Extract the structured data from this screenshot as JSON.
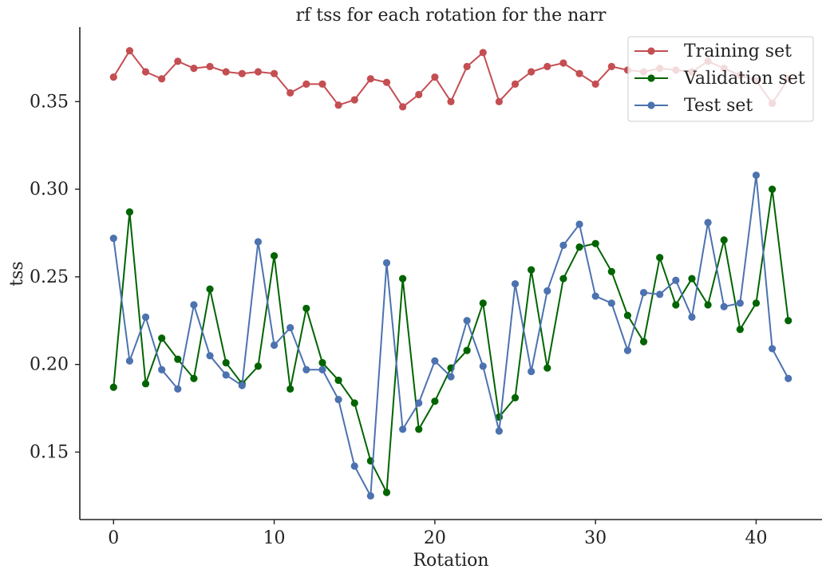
{
  "chart_data": {
    "type": "line",
    "title": "rf tss for each rotation for the narr",
    "xlabel": "Rotation",
    "ylabel": "tss",
    "xlim": [
      -2.1,
      44.1
    ],
    "ylim": [
      0.1115,
      0.3925
    ],
    "x_ticks": [
      0,
      10,
      20,
      30,
      40
    ],
    "y_ticks": [
      0.15,
      0.2,
      0.25,
      0.3,
      0.35
    ],
    "x_tick_labels": [
      "0",
      "10",
      "20",
      "30",
      "40"
    ],
    "y_tick_labels": [
      "0.15",
      "0.20",
      "0.25",
      "0.30",
      "0.35"
    ],
    "grid": false,
    "legend_position": "top-right",
    "x": [
      0,
      1,
      2,
      3,
      4,
      5,
      6,
      7,
      8,
      9,
      10,
      11,
      12,
      13,
      14,
      15,
      16,
      17,
      18,
      19,
      20,
      21,
      22,
      23,
      24,
      25,
      26,
      27,
      28,
      29,
      30,
      31,
      32,
      33,
      34,
      35,
      36,
      37,
      38,
      39,
      40,
      41,
      42
    ],
    "series": [
      {
        "name": "Training set",
        "color": "#c44e52",
        "values": [
          0.364,
          0.379,
          0.367,
          0.363,
          0.373,
          0.369,
          0.37,
          0.367,
          0.366,
          0.367,
          0.366,
          0.355,
          0.36,
          0.36,
          0.348,
          0.351,
          0.363,
          0.361,
          0.347,
          0.354,
          0.364,
          0.35,
          0.37,
          0.378,
          0.35,
          0.36,
          0.367,
          0.37,
          0.372,
          0.366,
          0.36,
          0.37,
          0.368,
          0.367,
          0.369,
          0.368,
          0.367,
          0.373,
          0.369,
          0.365,
          0.362,
          0.349,
          0.363
        ]
      },
      {
        "name": "Validation set",
        "color": "#006400",
        "values": [
          0.187,
          0.287,
          0.189,
          0.215,
          0.203,
          0.192,
          0.243,
          0.201,
          0.189,
          0.199,
          0.262,
          0.186,
          0.232,
          0.201,
          0.191,
          0.178,
          0.145,
          0.127,
          0.249,
          0.163,
          0.179,
          0.198,
          0.208,
          0.235,
          0.17,
          0.181,
          0.254,
          0.198,
          0.249,
          0.267,
          0.269,
          0.253,
          0.228,
          0.213,
          0.261,
          0.234,
          0.249,
          0.234,
          0.271,
          0.22,
          0.235,
          0.3,
          0.225
        ]
      },
      {
        "name": "Test set",
        "color": "#4c72b0",
        "values": [
          0.272,
          0.202,
          0.227,
          0.197,
          0.186,
          0.234,
          0.205,
          0.194,
          0.188,
          0.27,
          0.211,
          0.221,
          0.197,
          0.197,
          0.18,
          0.142,
          0.125,
          0.258,
          0.163,
          0.178,
          0.202,
          0.193,
          0.225,
          0.199,
          0.162,
          0.246,
          0.196,
          0.242,
          0.268,
          0.28,
          0.239,
          0.235,
          0.208,
          0.241,
          0.24,
          0.248,
          0.227,
          0.281,
          0.233,
          0.235,
          0.308,
          0.209,
          0.192
        ]
      }
    ]
  }
}
